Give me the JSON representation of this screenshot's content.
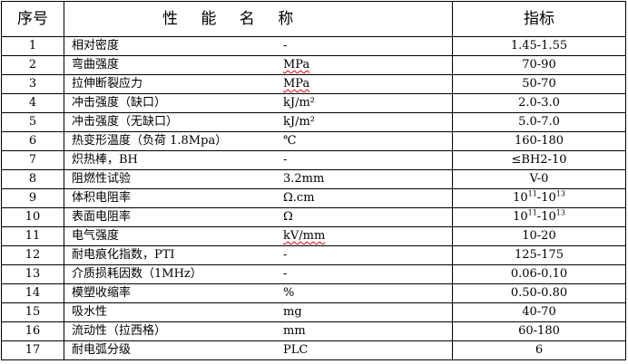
{
  "header": {
    "index": "序号",
    "property": "性 能 名 称",
    "value": "指标"
  },
  "rows": [
    {
      "no": "1",
      "name": "相对密度",
      "unit": "-",
      "value": "1.45-1.55"
    },
    {
      "no": "2",
      "name": "弯曲强度",
      "unit": "MPa",
      "unit_flagged": true,
      "value": "70-90"
    },
    {
      "no": "3",
      "name": "拉伸断裂应力",
      "unit": "MPa",
      "unit_flagged": true,
      "value": "50-70"
    },
    {
      "no": "4",
      "name": "冲击强度（缺口）",
      "unit": "kJ/m²",
      "value": "2.0-3.0"
    },
    {
      "no": "5",
      "name": "冲击强度（无缺口）",
      "unit": "kJ/m²",
      "value": "5.0-7.0"
    },
    {
      "no": "6",
      "name": "热变形温度（负荷 1.8Mpa）",
      "unit": "℃",
      "value": "160-180"
    },
    {
      "no": "7",
      "name": "炽热棒，BH",
      "unit": "-",
      "value": "≤BH2-10"
    },
    {
      "no": "8",
      "name": "阻燃性试验",
      "unit": "3.2mm",
      "value": "V-0"
    },
    {
      "no": "9",
      "name": "体积电阻率",
      "unit": "Ω.cm",
      "value_base1": "10",
      "value_exp1": "11",
      "value_sep": "-",
      "value_base2": "10",
      "value_exp2": "13"
    },
    {
      "no": "10",
      "name": "表面电阻率",
      "unit": "Ω",
      "value_base1": "10",
      "value_exp1": "11",
      "value_sep": "-",
      "value_base2": "10",
      "value_exp2": "13"
    },
    {
      "no": "11",
      "name": "电气强度",
      "unit": "kV/mm",
      "unit_flagged": true,
      "value": "10-20"
    },
    {
      "no": "12",
      "name": "耐电痕化指数，PTI",
      "unit": "-",
      "value": "125-175"
    },
    {
      "no": "13",
      "name": "介质损耗因数（1MHz）",
      "unit": "-",
      "value": "0.06-0.10"
    },
    {
      "no": "14",
      "name": "模塑收缩率",
      "unit": "%",
      "value": "0.50-0.80"
    },
    {
      "no": "15",
      "name": "吸水性",
      "unit": "mg",
      "value": "40-70"
    },
    {
      "no": "16",
      "name": "流动性（拉西格）",
      "unit": "mm",
      "value": "60-180"
    },
    {
      "no": "17",
      "name": "耐电弧分级",
      "unit": "PLC",
      "value": "6"
    }
  ]
}
